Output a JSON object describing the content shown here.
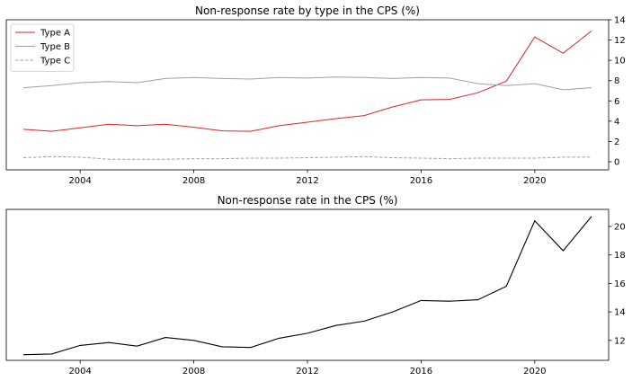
{
  "chart_data": [
    {
      "type": "line",
      "title": "Non-response rate by type in the CPS (%)",
      "xlabel": "",
      "ylabel": "",
      "xlim": [
        2001.4,
        2022.6
      ],
      "ylim": [
        -0.8,
        14
      ],
      "x_ticks": [
        2004,
        2008,
        2012,
        2016,
        2020
      ],
      "y_ticks": [
        0,
        2,
        4,
        6,
        8,
        10,
        12,
        14
      ],
      "y_axis_side": "right",
      "legend_position": "top-left",
      "grid": false,
      "x": [
        2002,
        2003,
        2004,
        2005,
        2006,
        2007,
        2008,
        2009,
        2010,
        2011,
        2012,
        2013,
        2014,
        2015,
        2016,
        2017,
        2018,
        2019,
        2020,
        2021,
        2022
      ],
      "series": [
        {
          "name": "Type A",
          "color": "#d62728",
          "dash": "solid",
          "values": [
            3.2,
            3.0,
            3.35,
            3.7,
            3.55,
            3.7,
            3.4,
            3.05,
            3.0,
            3.55,
            3.9,
            4.25,
            4.55,
            5.4,
            6.1,
            6.15,
            6.8,
            7.95,
            12.3,
            10.7,
            12.9
          ]
        },
        {
          "name": "Type B",
          "color": "#a0a0a0",
          "dash": "solid",
          "values": [
            7.3,
            7.5,
            7.8,
            7.9,
            7.8,
            8.2,
            8.3,
            8.2,
            8.15,
            8.3,
            8.25,
            8.35,
            8.3,
            8.2,
            8.3,
            8.25,
            7.7,
            7.5,
            7.7,
            7.1,
            7.3
          ]
        },
        {
          "name": "Type C",
          "color": "#a0a0a0",
          "dash": "dashed",
          "values": [
            0.4,
            0.5,
            0.45,
            0.25,
            0.25,
            0.25,
            0.3,
            0.3,
            0.35,
            0.35,
            0.4,
            0.45,
            0.5,
            0.4,
            0.35,
            0.3,
            0.35,
            0.35,
            0.35,
            0.45,
            0.45
          ]
        }
      ]
    },
    {
      "type": "line",
      "title": "Non-response rate in the CPS (%)",
      "xlabel": "",
      "ylabel": "",
      "xlim": [
        2001.4,
        2022.6
      ],
      "ylim": [
        10.6,
        21.2
      ],
      "x_ticks": [
        2004,
        2008,
        2012,
        2016,
        2020
      ],
      "y_ticks": [
        12,
        14,
        16,
        18,
        20
      ],
      "y_axis_side": "right",
      "grid": false,
      "x": [
        2002,
        2003,
        2004,
        2005,
        2006,
        2007,
        2008,
        2009,
        2010,
        2011,
        2012,
        2013,
        2014,
        2015,
        2016,
        2017,
        2018,
        2019,
        2020,
        2021,
        2022
      ],
      "series": [
        {
          "name": "",
          "color": "#000000",
          "dash": "solid",
          "values": [
            11.0,
            11.05,
            11.65,
            11.85,
            11.6,
            12.2,
            12.0,
            11.55,
            11.5,
            12.15,
            12.5,
            13.05,
            13.35,
            14.0,
            14.8,
            14.75,
            14.85,
            15.8,
            20.4,
            18.3,
            20.7
          ]
        }
      ]
    }
  ]
}
